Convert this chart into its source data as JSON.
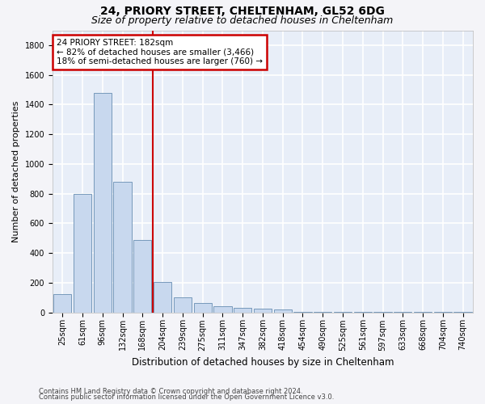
{
  "title1": "24, PRIORY STREET, CHELTENHAM, GL52 6DG",
  "title2": "Size of property relative to detached houses in Cheltenham",
  "xlabel": "Distribution of detached houses by size in Cheltenham",
  "ylabel": "Number of detached properties",
  "categories": [
    "25sqm",
    "61sqm",
    "96sqm",
    "132sqm",
    "168sqm",
    "204sqm",
    "239sqm",
    "275sqm",
    "311sqm",
    "347sqm",
    "382sqm",
    "418sqm",
    "454sqm",
    "490sqm",
    "525sqm",
    "561sqm",
    "597sqm",
    "633sqm",
    "668sqm",
    "704sqm",
    "740sqm"
  ],
  "values": [
    120,
    800,
    1480,
    880,
    490,
    205,
    100,
    65,
    40,
    30,
    25,
    20,
    5,
    5,
    5,
    5,
    5,
    5,
    5,
    5,
    5
  ],
  "bar_color": "#c8d8ee",
  "bar_edge_color": "#7799bb",
  "vline_color": "#cc0000",
  "annotation_text": "24 PRIORY STREET: 182sqm\n← 82% of detached houses are smaller (3,466)\n18% of semi-detached houses are larger (760) →",
  "annotation_box_color": "#ffffff",
  "annotation_box_edge": "#cc0000",
  "footer1": "Contains HM Land Registry data © Crown copyright and database right 2024.",
  "footer2": "Contains public sector information licensed under the Open Government Licence v3.0.",
  "ylim": [
    0,
    1900
  ],
  "yticks": [
    0,
    200,
    400,
    600,
    800,
    1000,
    1200,
    1400,
    1600,
    1800
  ],
  "bg_color": "#e8eef8",
  "grid_color": "#ffffff",
  "fig_bg_color": "#f4f4f8",
  "title1_fontsize": 10,
  "title2_fontsize": 9,
  "xlabel_fontsize": 8.5,
  "ylabel_fontsize": 8,
  "tick_fontsize": 7,
  "footer_fontsize": 6,
  "ann_fontsize": 7.5
}
